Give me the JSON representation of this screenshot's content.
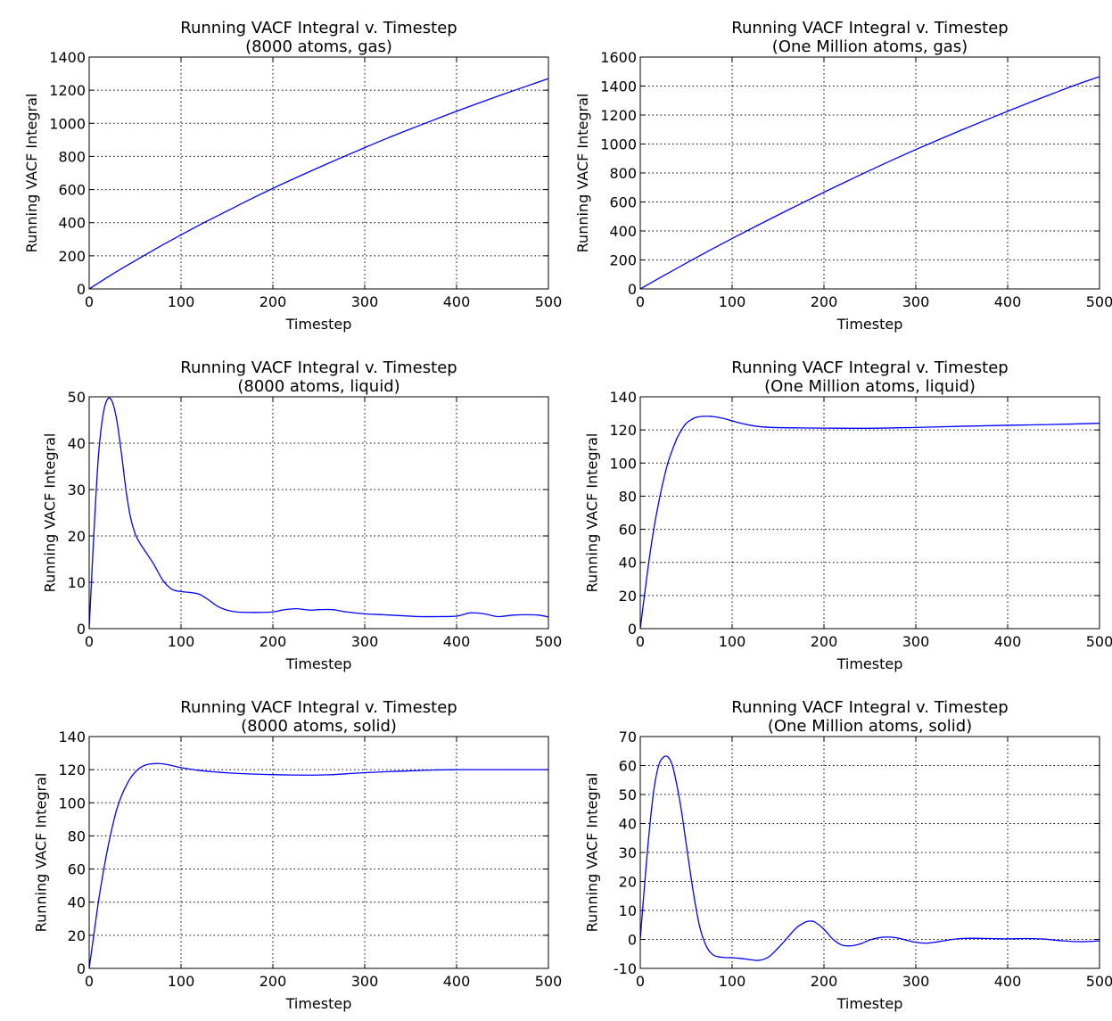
{
  "colors": {
    "series": "#0000ff",
    "axis": "#000000",
    "background": "#ffffff"
  },
  "chart_data": [
    {
      "type": "line",
      "title": [
        "Running VACF Integral v. Timestep",
        "(8000 atoms, gas)"
      ],
      "xlabel": "Timestep",
      "ylabel": "Running VACF Integral",
      "xlim": [
        0,
        500
      ],
      "ylim": [
        0,
        1400
      ],
      "xticks": [
        0,
        100,
        200,
        300,
        400,
        500
      ],
      "yticks": [
        0,
        200,
        400,
        600,
        800,
        1000,
        1200,
        1400
      ],
      "grid": true,
      "series": [
        {
          "name": "VACF integral",
          "x": [
            0,
            25,
            50,
            75,
            100,
            125,
            150,
            175,
            200,
            225,
            250,
            275,
            300,
            325,
            350,
            375,
            400,
            425,
            450,
            475,
            500
          ],
          "y": [
            0,
            88,
            170,
            250,
            326,
            400,
            470,
            540,
            607,
            671,
            733,
            794,
            853,
            911,
            966,
            1020,
            1073,
            1124,
            1174,
            1222,
            1270
          ]
        }
      ]
    },
    {
      "type": "line",
      "title": [
        "Running VACF Integral v. Timestep",
        "(One Million atoms, gas)"
      ],
      "xlabel": "Timestep",
      "ylabel": "Running VACF Integral",
      "xlim": [
        0,
        500
      ],
      "ylim": [
        0,
        1600
      ],
      "xticks": [
        0,
        100,
        200,
        300,
        400,
        500
      ],
      "yticks": [
        0,
        200,
        400,
        600,
        800,
        1000,
        1200,
        1400,
        1600
      ],
      "grid": true,
      "series": [
        {
          "name": "VACF integral",
          "x": [
            0,
            25,
            50,
            75,
            100,
            125,
            150,
            175,
            200,
            225,
            250,
            275,
            300,
            325,
            350,
            375,
            400,
            425,
            450,
            475,
            500
          ],
          "y": [
            0,
            90,
            178,
            264,
            348,
            430,
            510,
            589,
            667,
            743,
            818,
            891,
            962,
            1030,
            1097,
            1162,
            1226,
            1289,
            1350,
            1410,
            1465
          ]
        }
      ]
    },
    {
      "type": "line",
      "title": [
        "Running VACF Integral v. Timestep",
        "(8000 atoms, liquid)"
      ],
      "xlabel": "Timestep",
      "ylabel": "Running VACF Integral",
      "xlim": [
        0,
        500
      ],
      "ylim": [
        0,
        50
      ],
      "xticks": [
        0,
        100,
        200,
        300,
        400,
        500
      ],
      "yticks": [
        0,
        10,
        20,
        30,
        40,
        50
      ],
      "grid": true,
      "series": [
        {
          "name": "VACF integral",
          "x": [
            0,
            5,
            10,
            15,
            20,
            25,
            30,
            35,
            40,
            45,
            50,
            55,
            60,
            70,
            80,
            90,
            100,
            110,
            120,
            130,
            140,
            150,
            160,
            180,
            200,
            210,
            225,
            240,
            250,
            265,
            280,
            300,
            320,
            340,
            360,
            380,
            400,
            415,
            430,
            445,
            460,
            475,
            490,
            500
          ],
          "y": [
            0,
            20,
            37,
            46,
            49.5,
            49,
            45,
            38,
            30,
            24,
            20.5,
            18.5,
            17,
            14,
            10.5,
            8.5,
            8,
            7.8,
            7.4,
            6.2,
            4.8,
            4.0,
            3.6,
            3.5,
            3.6,
            4.0,
            4.3,
            4.0,
            4.1,
            4.1,
            3.6,
            3.2,
            3.0,
            2.8,
            2.6,
            2.6,
            2.7,
            3.4,
            3.2,
            2.6,
            2.9,
            3.0,
            2.9,
            2.5
          ]
        }
      ]
    },
    {
      "type": "line",
      "title": [
        "Running VACF Integral v. Timestep",
        "(One Million atoms, liquid)"
      ],
      "xlabel": "Timestep",
      "ylabel": "Running VACF Integral",
      "xlim": [
        0,
        500
      ],
      "ylim": [
        0,
        140
      ],
      "xticks": [
        0,
        100,
        200,
        300,
        400,
        500
      ],
      "yticks": [
        0,
        20,
        40,
        60,
        80,
        100,
        120,
        140
      ],
      "grid": true,
      "series": [
        {
          "name": "VACF integral",
          "x": [
            0,
            5,
            10,
            15,
            20,
            25,
            30,
            35,
            40,
            45,
            50,
            55,
            60,
            65,
            70,
            75,
            80,
            90,
            100,
            110,
            120,
            130,
            140,
            150,
            175,
            200,
            250,
            300,
            350,
            400,
            450,
            500
          ],
          "y": [
            0,
            22,
            43,
            61,
            76,
            89,
            100,
            108,
            115,
            120,
            124,
            126,
            127.5,
            128,
            128.2,
            128.2,
            128,
            127,
            125.5,
            124,
            122.8,
            122,
            121.6,
            121.4,
            121.2,
            121.1,
            121,
            121.5,
            122.2,
            122.8,
            123.3,
            124
          ]
        }
      ]
    },
    {
      "type": "line",
      "title": [
        "Running VACF Integral v. Timestep",
        "(8000 atoms, solid)"
      ],
      "xlabel": "Timestep",
      "ylabel": "Running VACF Integral",
      "xlim": [
        0,
        500
      ],
      "ylim": [
        0,
        140
      ],
      "xticks": [
        0,
        100,
        200,
        300,
        400,
        500
      ],
      "yticks": [
        0,
        20,
        40,
        60,
        80,
        100,
        120,
        140
      ],
      "grid": true,
      "series": [
        {
          "name": "VACF integral",
          "x": [
            0,
            5,
            10,
            15,
            20,
            25,
            30,
            35,
            40,
            45,
            50,
            55,
            60,
            65,
            70,
            75,
            80,
            90,
            100,
            120,
            140,
            160,
            180,
            200,
            220,
            240,
            260,
            280,
            300,
            325,
            350,
            375,
            400,
            425,
            450,
            475,
            500
          ],
          "y": [
            0,
            20,
            40,
            57,
            72,
            85,
            96,
            104,
            110,
            115,
            118.5,
            121,
            122.5,
            123.3,
            123.6,
            123.7,
            123.5,
            122.5,
            121.2,
            119.5,
            118.5,
            117.8,
            117.3,
            117,
            116.8,
            116.7,
            116.9,
            117.5,
            118.2,
            118.8,
            119.3,
            119.8,
            120,
            120,
            120,
            120,
            120
          ]
        }
      ]
    },
    {
      "type": "line",
      "title": [
        "Running VACF Integral v. Timestep",
        "(One Million atoms, solid)"
      ],
      "xlabel": "Timestep",
      "ylabel": "Running VACF Integral",
      "xlim": [
        0,
        500
      ],
      "ylim": [
        -10,
        70
      ],
      "xticks": [
        0,
        100,
        200,
        300,
        400,
        500
      ],
      "yticks": [
        -10,
        0,
        10,
        20,
        30,
        40,
        50,
        60,
        70
      ],
      "grid": true,
      "series": [
        {
          "name": "VACF integral",
          "x": [
            0,
            5,
            10,
            15,
            20,
            25,
            30,
            35,
            40,
            45,
            50,
            55,
            60,
            65,
            70,
            75,
            80,
            85,
            90,
            95,
            100,
            110,
            120,
            130,
            140,
            150,
            160,
            170,
            180,
            185,
            190,
            200,
            210,
            220,
            230,
            240,
            250,
            260,
            270,
            280,
            290,
            300,
            310,
            320,
            330,
            340,
            350,
            360,
            380,
            400,
            420,
            440,
            460,
            480,
            500
          ],
          "y": [
            0,
            20,
            38,
            52,
            60,
            62.8,
            63,
            60,
            53,
            44,
            33,
            22,
            12,
            4,
            -1,
            -4,
            -5.5,
            -6,
            -6.2,
            -6.3,
            -6.3,
            -6.6,
            -7,
            -7.2,
            -6,
            -3,
            0.5,
            4,
            6,
            6.3,
            6,
            3.5,
            0,
            -2,
            -2.2,
            -1.5,
            -0.2,
            0.6,
            0.8,
            0.5,
            -0.3,
            -1,
            -1.3,
            -1,
            -0.5,
            0,
            0.3,
            0.4,
            0.3,
            0.2,
            0.3,
            0.1,
            -0.5,
            -0.8,
            -0.5
          ]
        }
      ]
    }
  ]
}
